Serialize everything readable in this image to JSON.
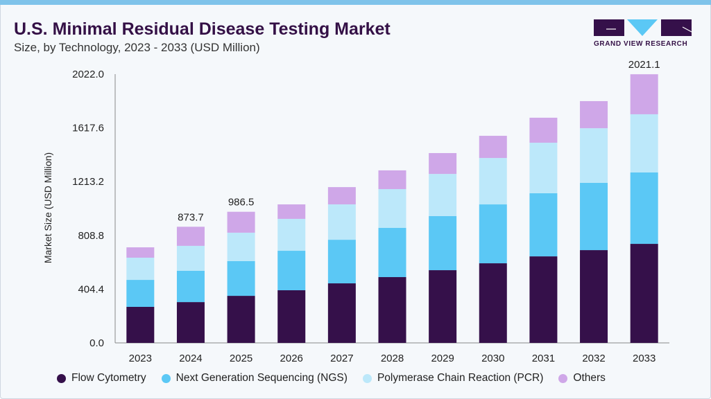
{
  "header": {
    "title": "U.S. Minimal Residual Disease Testing Market",
    "subtitle": "Size, by Technology, 2023 - 2033 (USD Million)",
    "logo_text": "GRAND VIEW RESEARCH"
  },
  "colors": {
    "Flow Cytometry": "#35104a",
    "Next Generation Sequencing (NGS)": "#5bc8f5",
    "Polymerase Chain Reaction (PCR)": "#bce8fa",
    "Others": "#cfa7e8"
  },
  "chart_data": {
    "type": "bar",
    "stacked": true,
    "title": "U.S. Minimal Residual Disease Testing Market",
    "xlabel": "",
    "ylabel": "Market Size (USD Million)",
    "ylim": [
      0,
      2022.0
    ],
    "yticks": [
      "0.0",
      "404.4",
      "808.8",
      "1213.2",
      "1617.6",
      "2022.0"
    ],
    "categories": [
      "2023",
      "2024",
      "2025",
      "2026",
      "2027",
      "2028",
      "2029",
      "2030",
      "2031",
      "2032",
      "2033"
    ],
    "series": [
      {
        "name": "Flow Cytometry",
        "values": [
          271,
          307,
          354,
          396,
          448,
          495,
          547,
          599,
          651,
          698,
          745
        ]
      },
      {
        "name": "Next Generation Sequencing (NGS)",
        "values": [
          203,
          235,
          261,
          297,
          328,
          370,
          407,
          443,
          475,
          506,
          537
        ]
      },
      {
        "name": "Polymerase Chain Reaction (PCR)",
        "values": [
          167,
          188,
          214,
          240,
          266,
          292,
          317,
          349,
          380,
          411,
          438
        ]
      },
      {
        "name": "Others",
        "values": [
          78,
          143.7,
          157.5,
          109,
          130,
          141,
          157,
          167,
          188,
          204,
          301.1
        ]
      }
    ],
    "annotations": [
      {
        "category": "2024",
        "label": "873.7"
      },
      {
        "category": "2025",
        "label": "986.5"
      },
      {
        "category": "2033",
        "label": "2021.1"
      }
    ],
    "legend": "bottom"
  }
}
